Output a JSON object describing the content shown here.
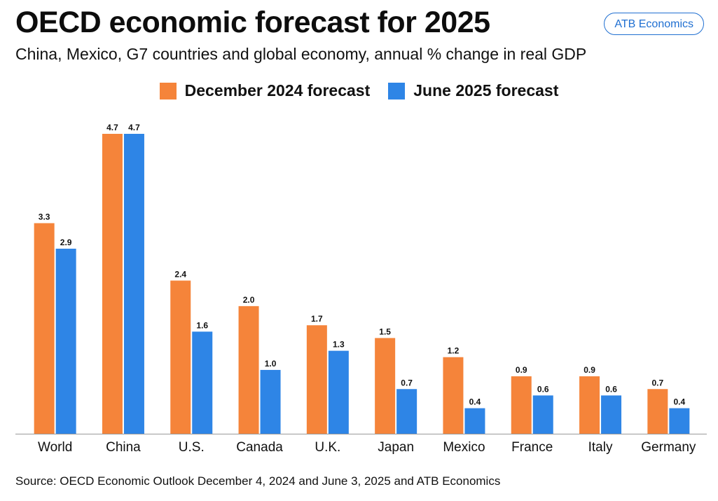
{
  "header": {
    "title": "OECD economic forecast for 2025",
    "subtitle": "China, Mexico, G7 countries and global economy, annual % change in real GDP",
    "badge": "ATB Economics"
  },
  "source": "Source: OECD Economic Outlook December 4, 2024 and June 3, 2025 and ATB Economics",
  "colors": {
    "december": "#f5843a",
    "june": "#2e85e6",
    "badge": "#1f6fd1"
  },
  "chart_data": {
    "type": "bar",
    "title": "OECD economic forecast for 2025",
    "xlabel": "",
    "ylabel": "",
    "ylim": [
      0,
      4.7
    ],
    "legend_position": "top-center",
    "categories": [
      "World",
      "China",
      "U.S.",
      "Canada",
      "U.K.",
      "Japan",
      "Mexico",
      "France",
      "Italy",
      "Germany"
    ],
    "series": [
      {
        "name": "December 2024 forecast",
        "values": [
          3.3,
          4.7,
          2.4,
          2.0,
          1.7,
          1.5,
          1.2,
          0.9,
          0.9,
          0.7
        ],
        "labels": [
          "3.3",
          "4.7",
          "2.4",
          "2.0",
          "1.7",
          "1.5",
          "1.2",
          "0.9",
          "0.9",
          "0.7"
        ]
      },
      {
        "name": "June 2025 forecast",
        "values": [
          2.9,
          4.7,
          1.6,
          1.0,
          1.3,
          0.7,
          0.4,
          0.6,
          0.6,
          0.4
        ],
        "labels": [
          "2.9",
          "4.7",
          "1.6",
          "1.0",
          "1.3",
          "0.7",
          "0.4",
          "0.6",
          "0.6",
          "0.4"
        ]
      }
    ]
  }
}
